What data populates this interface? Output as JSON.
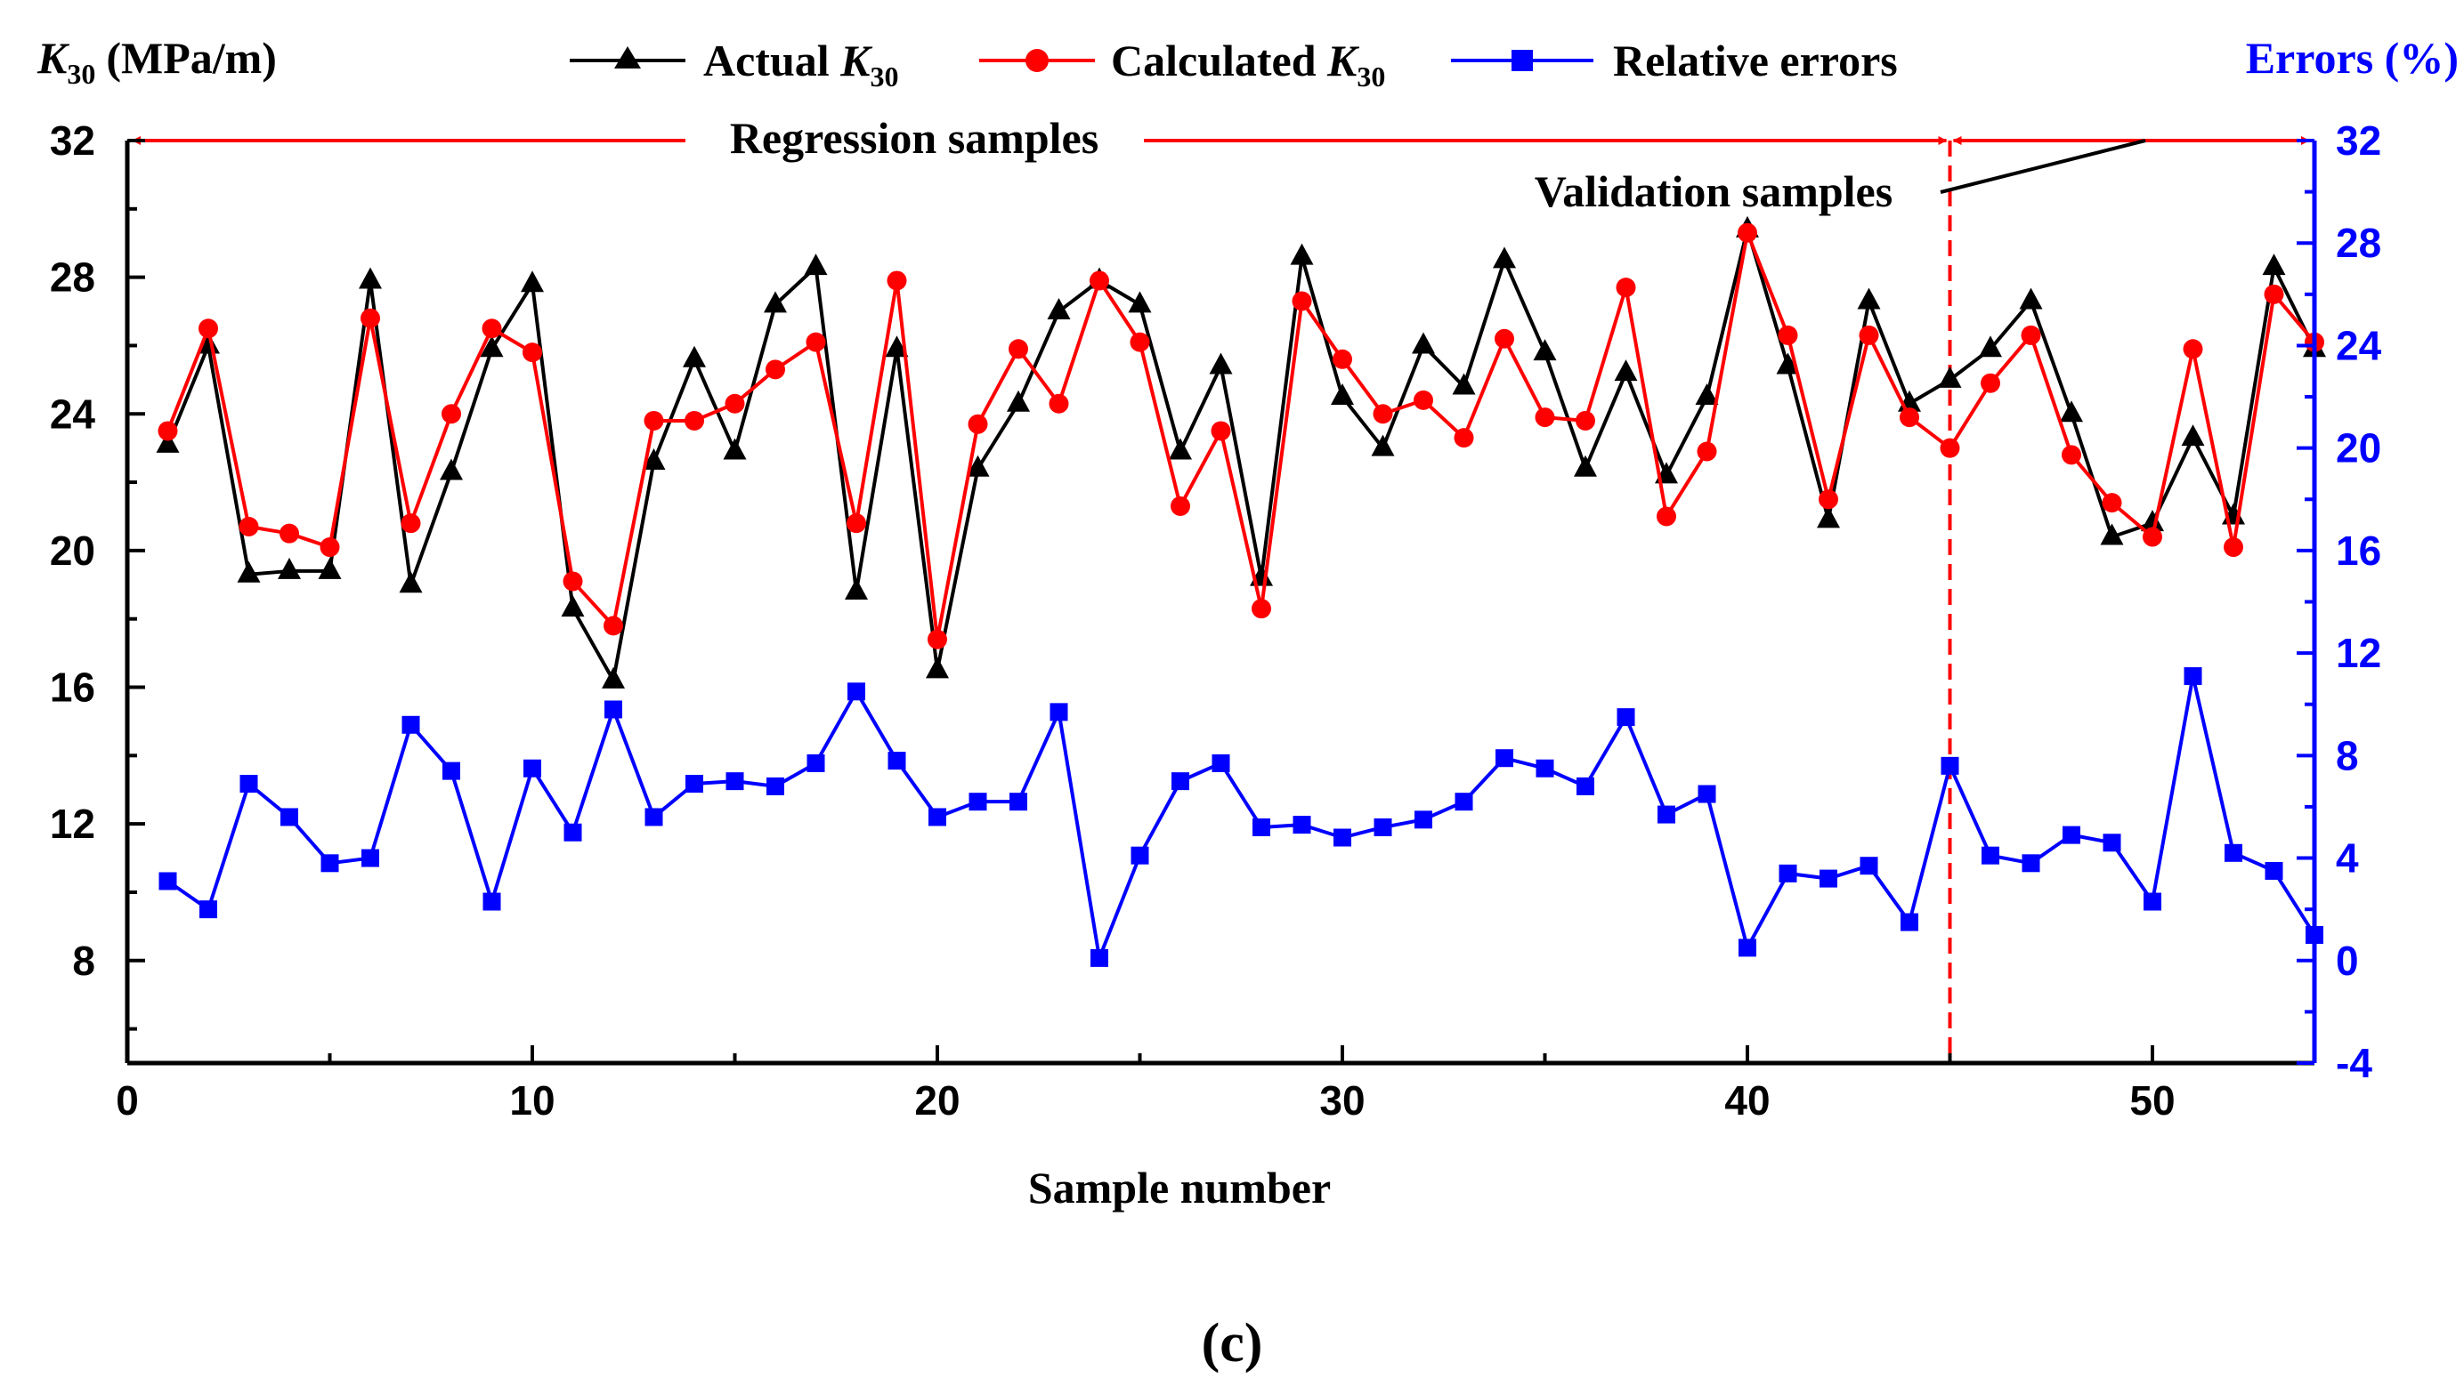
{
  "chart_data": {
    "type": "line",
    "panel_label": "(c)",
    "xlabel": "Sample number",
    "xlim": [
      0,
      54
    ],
    "x_ticks": [
      0,
      10,
      20,
      30,
      40,
      50
    ],
    "ylabel_left": {
      "symbol": "K",
      "sub": "30",
      "unit": "(MPa/m)"
    },
    "ylim_left": [
      5,
      32
    ],
    "y_ticks_left": [
      8,
      12,
      16,
      20,
      24,
      28,
      32
    ],
    "ylabel_right": "Errors (%)",
    "ylim_right": [
      -4,
      32
    ],
    "y_ticks_right": [
      -4,
      0,
      4,
      8,
      12,
      16,
      20,
      24,
      28,
      32
    ],
    "annotations": {
      "regression": "Regression samples",
      "validation": "Validation samples",
      "split_at_sample": 45
    },
    "colors": {
      "actual": "#000000",
      "calculated": "#ff0000",
      "errors": "#0000ff",
      "divider": "#ff0000"
    },
    "x": [
      1,
      2,
      3,
      4,
      5,
      6,
      7,
      8,
      9,
      10,
      11,
      12,
      13,
      14,
      15,
      16,
      17,
      18,
      19,
      20,
      21,
      22,
      23,
      24,
      25,
      26,
      27,
      28,
      29,
      30,
      31,
      32,
      33,
      34,
      35,
      36,
      37,
      38,
      39,
      40,
      41,
      42,
      43,
      44,
      45,
      46,
      47,
      48,
      49,
      50,
      51,
      52,
      53,
      54
    ],
    "series": [
      {
        "name": "Actual K30",
        "legend": {
          "text": "Actual ",
          "symbol": "K",
          "sub": "30"
        },
        "axis": "left",
        "marker": "triangle",
        "values": [
          23.1,
          26.0,
          19.3,
          19.4,
          19.4,
          27.9,
          19.0,
          22.3,
          25.9,
          27.8,
          18.3,
          16.2,
          22.6,
          25.6,
          22.9,
          27.2,
          28.3,
          18.8,
          25.9,
          16.5,
          22.4,
          24.3,
          27.0,
          27.9,
          27.2,
          22.9,
          25.4,
          19.2,
          28.6,
          24.5,
          23.0,
          26.0,
          24.8,
          28.5,
          25.8,
          22.4,
          25.2,
          22.2,
          24.5,
          29.4,
          25.4,
          20.9,
          27.3,
          24.3,
          25.0,
          25.9,
          27.3,
          24.0,
          20.4,
          20.8,
          23.3,
          21.0,
          28.3,
          25.9
        ]
      },
      {
        "name": "Calculated K30",
        "legend": {
          "text": "Calculated ",
          "symbol": "K",
          "sub": "30"
        },
        "axis": "left",
        "marker": "circle",
        "values": [
          23.5,
          26.5,
          20.7,
          20.5,
          20.1,
          26.8,
          20.8,
          24.0,
          26.5,
          25.8,
          19.1,
          17.8,
          23.8,
          23.8,
          24.3,
          25.3,
          26.1,
          20.8,
          27.9,
          17.4,
          23.7,
          25.9,
          24.3,
          27.9,
          26.1,
          21.3,
          23.5,
          18.3,
          27.3,
          25.6,
          24.0,
          24.4,
          23.3,
          26.2,
          23.9,
          23.8,
          27.7,
          21.0,
          22.9,
          29.3,
          26.3,
          21.5,
          26.3,
          23.9,
          23.0,
          24.9,
          26.3,
          22.8,
          21.4,
          20.4,
          25.9,
          20.1,
          27.5,
          26.1
        ]
      },
      {
        "name": "Relative errors",
        "legend": {
          "text": "Relative errors"
        },
        "axis": "right",
        "marker": "square",
        "values": [
          3.1,
          2.0,
          6.9,
          5.6,
          3.8,
          4.0,
          9.2,
          7.4,
          2.3,
          7.5,
          5.0,
          9.8,
          5.6,
          6.9,
          7.0,
          6.8,
          7.7,
          10.5,
          7.8,
          5.6,
          6.2,
          6.2,
          9.7,
          0.1,
          4.1,
          7.0,
          7.7,
          5.2,
          5.3,
          4.8,
          5.2,
          5.5,
          6.2,
          7.9,
          7.5,
          6.8,
          9.5,
          5.7,
          6.5,
          0.5,
          3.4,
          3.2,
          3.7,
          1.5,
          7.6,
          4.1,
          3.8,
          4.9,
          4.6,
          2.3,
          11.1,
          4.2,
          3.5,
          1.0
        ]
      }
    ]
  }
}
